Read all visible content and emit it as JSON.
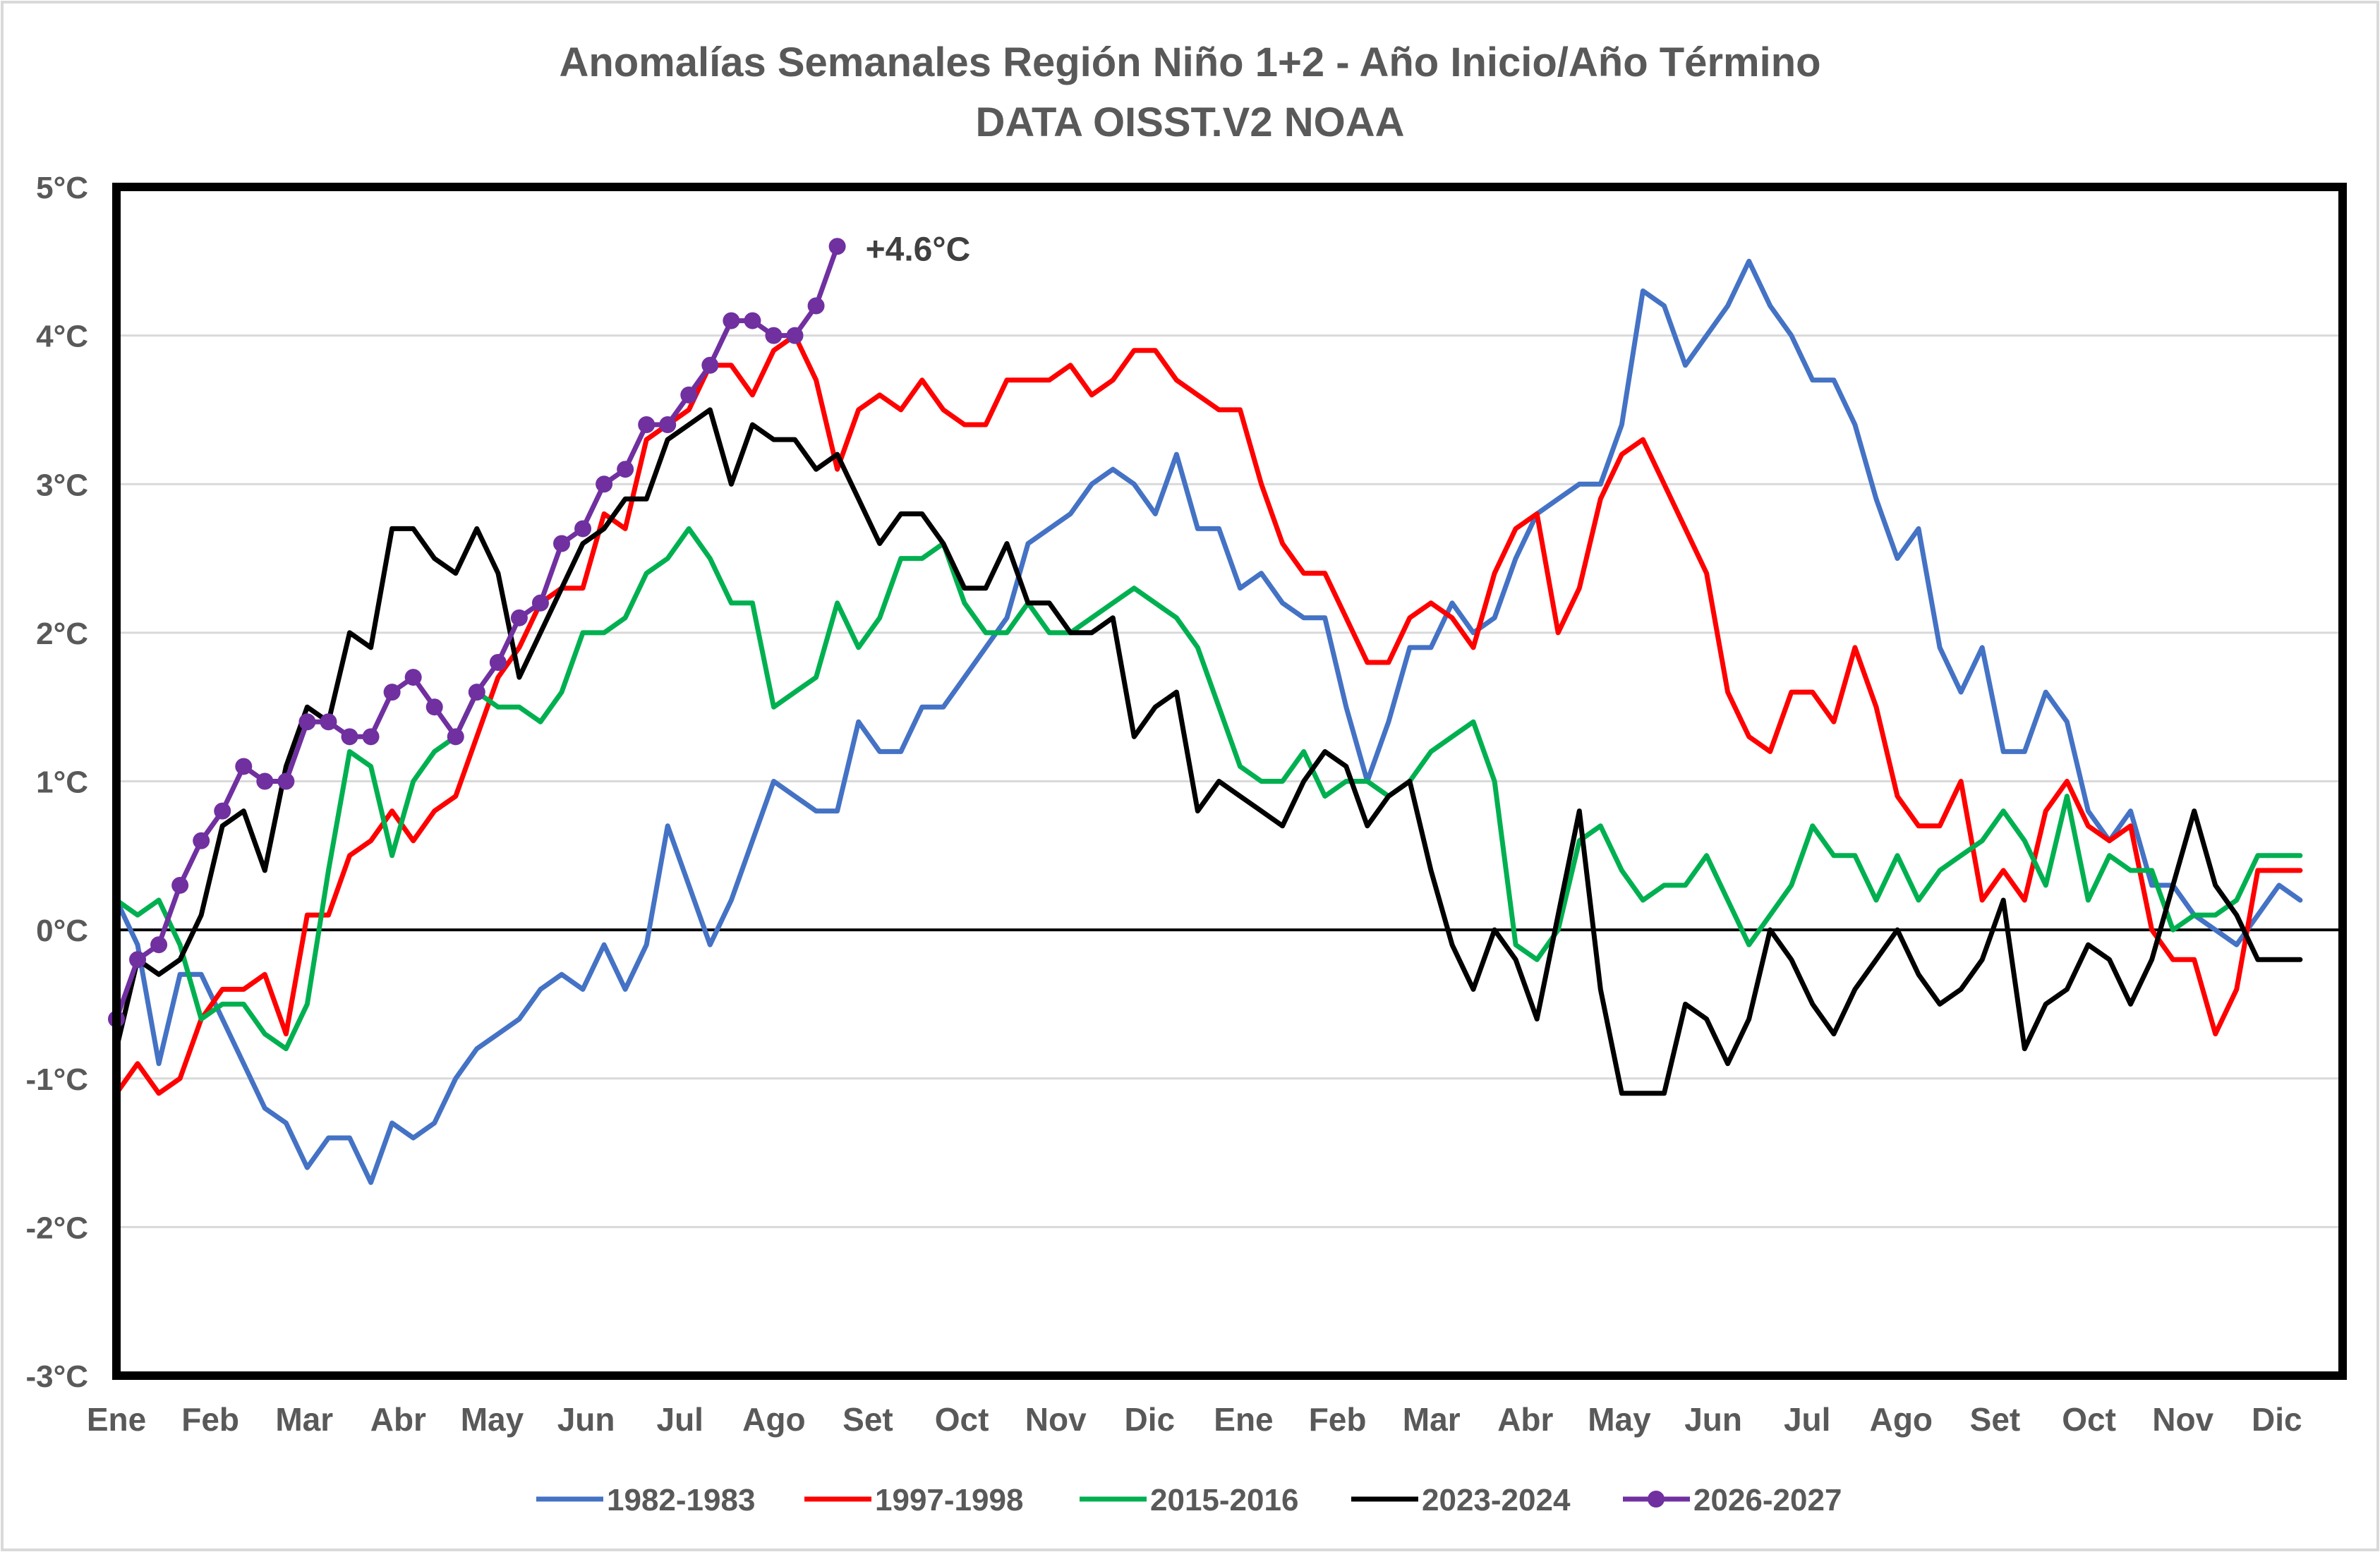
{
  "chart_data": {
    "type": "line",
    "title": "Anomalías Semanales Región Niño 1+2 - Año Inicio/Año Término",
    "subtitle": "DATA OISST.V2 NOAA",
    "xlabel": "",
    "ylabel": "",
    "ylim": [
      -3,
      5
    ],
    "y_ticks": [
      "-3°C",
      "-2°C",
      "-1°C",
      "0°C",
      "1°C",
      "2°C",
      "3°C",
      "4°C",
      "5°C"
    ],
    "y_tick_values": [
      -3,
      -2,
      -1,
      0,
      1,
      2,
      3,
      4,
      5
    ],
    "x_tick_labels": [
      "Ene",
      "Feb",
      "Mar",
      "Abr",
      "May",
      "Jun",
      "Jul",
      "Ago",
      "Set",
      "Oct",
      "Nov",
      "Dic",
      "Ene",
      "Feb",
      "Mar",
      "Abr",
      "May",
      "Jun",
      "Jul",
      "Ago",
      "Set",
      "Oct",
      "Nov",
      "Dic"
    ],
    "x_range_weeks": [
      0,
      105
    ],
    "grid": "horizontal",
    "legend_position": "bottom",
    "annotation": {
      "text": "+4.6°C",
      "series": "2026-2027"
    },
    "series": [
      {
        "name": "1982-1983",
        "color": "#4472C4",
        "values": [
          0.2,
          -0.1,
          -0.9,
          -0.3,
          -0.3,
          -0.6,
          -0.9,
          -1.2,
          -1.3,
          -1.6,
          -1.4,
          -1.4,
          -1.7,
          -1.3,
          -1.4,
          -1.3,
          -1.0,
          -0.8,
          -0.7,
          -0.6,
          -0.4,
          -0.3,
          -0.4,
          -0.1,
          -0.4,
          -0.1,
          0.7,
          0.3,
          -0.1,
          0.2,
          0.6,
          1.0,
          0.9,
          0.8,
          0.8,
          1.4,
          1.2,
          1.2,
          1.5,
          1.5,
          1.7,
          1.9,
          2.1,
          2.6,
          2.7,
          2.8,
          3.0,
          3.1,
          3.0,
          2.8,
          3.2,
          2.7,
          2.7,
          2.3,
          2.4,
          2.2,
          2.1,
          2.1,
          1.5,
          1.0,
          1.4,
          1.9,
          1.9,
          2.2,
          2.0,
          2.1,
          2.5,
          2.8,
          2.9,
          3.0,
          3.0,
          3.4,
          4.3,
          4.2,
          3.8,
          4.0,
          4.2,
          4.5,
          4.2,
          4.0,
          3.7,
          3.7,
          3.4,
          2.9,
          2.5,
          2.7,
          1.9,
          1.6,
          1.9,
          1.2,
          1.2,
          1.6,
          1.4,
          0.8,
          0.6,
          0.8,
          0.3,
          0.3,
          0.1,
          0.0,
          -0.1,
          0.1,
          0.3,
          0.2
        ]
      },
      {
        "name": "1997-1998",
        "color": "#FF0000",
        "values": [
          -1.1,
          -0.9,
          -1.1,
          -1.0,
          -0.6,
          -0.4,
          -0.4,
          -0.3,
          -0.7,
          0.1,
          0.1,
          0.5,
          0.6,
          0.8,
          0.6,
          0.8,
          0.9,
          1.3,
          1.7,
          1.9,
          2.2,
          2.3,
          2.3,
          2.8,
          2.7,
          3.3,
          3.4,
          3.5,
          3.8,
          3.8,
          3.6,
          3.9,
          4.0,
          3.7,
          3.1,
          3.5,
          3.6,
          3.5,
          3.7,
          3.5,
          3.4,
          3.4,
          3.7,
          3.7,
          3.7,
          3.8,
          3.6,
          3.7,
          3.9,
          3.9,
          3.7,
          3.6,
          3.5,
          3.5,
          3.0,
          2.6,
          2.4,
          2.4,
          2.1,
          1.8,
          1.8,
          2.1,
          2.2,
          2.1,
          1.9,
          2.4,
          2.7,
          2.8,
          2.0,
          2.3,
          2.9,
          3.2,
          3.3,
          3.0,
          2.7,
          2.4,
          1.6,
          1.3,
          1.2,
          1.6,
          1.6,
          1.4,
          1.9,
          1.5,
          0.9,
          0.7,
          0.7,
          1.0,
          0.2,
          0.4,
          0.2,
          0.8,
          1.0,
          0.7,
          0.6,
          0.7,
          0.0,
          -0.2,
          -0.2,
          -0.7,
          -0.4,
          0.4,
          0.4,
          0.4
        ]
      },
      {
        "name": "2015-2016",
        "color": "#00B050",
        "values": [
          0.2,
          0.1,
          0.2,
          -0.1,
          -0.6,
          -0.5,
          -0.5,
          -0.7,
          -0.8,
          -0.5,
          0.4,
          1.2,
          1.1,
          0.5,
          1.0,
          1.2,
          1.3,
          1.6,
          1.5,
          1.5,
          1.4,
          1.6,
          2.0,
          2.0,
          2.1,
          2.4,
          2.5,
          2.7,
          2.5,
          2.2,
          2.2,
          1.5,
          1.6,
          1.7,
          2.2,
          1.9,
          2.1,
          2.5,
          2.5,
          2.6,
          2.2,
          2.0,
          2.0,
          2.2,
          2.0,
          2.0,
          2.1,
          2.2,
          2.3,
          2.2,
          2.1,
          1.9,
          1.5,
          1.1,
          1.0,
          1.0,
          1.2,
          0.9,
          1.0,
          1.0,
          0.9,
          1.0,
          1.2,
          1.3,
          1.4,
          1.0,
          -0.1,
          -0.2,
          0.0,
          0.6,
          0.7,
          0.4,
          0.2,
          0.3,
          0.3,
          0.5,
          0.2,
          -0.1,
          0.1,
          0.3,
          0.7,
          0.5,
          0.5,
          0.2,
          0.5,
          0.2,
          0.4,
          0.5,
          0.6,
          0.8,
          0.6,
          0.3,
          0.9,
          0.2,
          0.5,
          0.4,
          0.4,
          0.0,
          0.1,
          0.1,
          0.2,
          0.5,
          0.5,
          0.5
        ]
      },
      {
        "name": "2023-2024",
        "color": "#000000",
        "values": [
          -0.8,
          -0.2,
          -0.3,
          -0.2,
          0.1,
          0.7,
          0.8,
          0.4,
          1.1,
          1.5,
          1.4,
          2.0,
          1.9,
          2.7,
          2.7,
          2.5,
          2.4,
          2.7,
          2.4,
          1.7,
          2.0,
          2.3,
          2.6,
          2.7,
          2.9,
          2.9,
          3.3,
          3.4,
          3.5,
          3.0,
          3.4,
          3.3,
          3.3,
          3.1,
          3.2,
          2.9,
          2.6,
          2.8,
          2.8,
          2.6,
          2.3,
          2.3,
          2.6,
          2.2,
          2.2,
          2.0,
          2.0,
          2.1,
          1.3,
          1.5,
          1.6,
          0.8,
          1.0,
          0.9,
          0.8,
          0.7,
          1.0,
          1.2,
          1.1,
          0.7,
          0.9,
          1.0,
          0.4,
          -0.1,
          -0.4,
          0.0,
          -0.2,
          -0.6,
          0.1,
          0.8,
          -0.4,
          -1.1,
          -1.1,
          -1.1,
          -0.5,
          -0.6,
          -0.9,
          -0.6,
          0.0,
          -0.2,
          -0.5,
          -0.7,
          -0.4,
          -0.2,
          0.0,
          -0.3,
          -0.5,
          -0.4,
          -0.2,
          0.2,
          -0.8,
          -0.5,
          -0.4,
          -0.1,
          -0.2,
          -0.5,
          -0.2,
          0.3,
          0.8,
          0.3,
          0.1,
          -0.2,
          -0.2,
          -0.2
        ]
      },
      {
        "name": "2026-2027",
        "color": "#7030A0",
        "values": [
          -0.6,
          -0.2,
          -0.1,
          0.3,
          0.6,
          0.8,
          1.1,
          1.0,
          1.0,
          1.4,
          1.4,
          1.3,
          1.3,
          1.6,
          1.7,
          1.5,
          1.3,
          1.6,
          1.8,
          2.1,
          2.2,
          2.6,
          2.7,
          3.0,
          3.1,
          3.4,
          3.4,
          3.6,
          3.8,
          4.1,
          4.1,
          4.0,
          4.0,
          4.2,
          4.6
        ]
      }
    ]
  }
}
